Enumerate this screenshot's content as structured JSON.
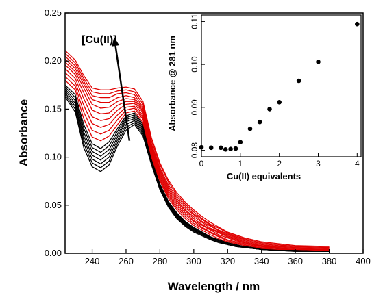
{
  "chart_data": [
    {
      "type": "line",
      "title": "",
      "xlabel": "Wavelength / nm",
      "ylabel": "Absorbance",
      "xlim": [
        224,
        400
      ],
      "ylim": [
        0,
        0.25
      ],
      "xticks": [
        240,
        260,
        280,
        300,
        320,
        340,
        360,
        380,
        400
      ],
      "yticks": [
        0.0,
        0.05,
        0.1,
        0.15,
        0.2,
        0.25
      ],
      "ytick_labels": [
        "0.00",
        "0.05",
        "0.10",
        "0.15",
        "0.20",
        "0.25"
      ],
      "annotation": {
        "text": "[Cu(II)]",
        "arrow_from": [
          262,
          0.117
        ],
        "arrow_to": [
          253,
          0.225
        ]
      },
      "colors": {
        "black_series": "#000000",
        "red_series": "#e00000"
      },
      "series": [
        {
          "color": "#000000",
          "values": [
            0.163,
            0.147,
            0.11,
            0.09,
            0.085,
            0.092,
            0.112,
            0.128,
            0.134,
            0.122,
            0.092,
            0.066,
            0.048,
            0.036,
            0.028,
            0.022,
            0.018,
            0.014,
            0.011,
            0.009,
            0.007,
            0.006,
            0.005,
            0.004,
            0.003,
            0.002,
            0.002
          ]
        },
        {
          "color": "#000000",
          "values": [
            0.165,
            0.15,
            0.114,
            0.094,
            0.089,
            0.096,
            0.115,
            0.131,
            0.136,
            0.124,
            0.093,
            0.067,
            0.049,
            0.037,
            0.029,
            0.023,
            0.019,
            0.015,
            0.012,
            0.009,
            0.007,
            0.006,
            0.005,
            0.004,
            0.003,
            0.002,
            0.002
          ]
        },
        {
          "color": "#000000",
          "values": [
            0.167,
            0.153,
            0.118,
            0.098,
            0.093,
            0.1,
            0.118,
            0.134,
            0.138,
            0.126,
            0.094,
            0.068,
            0.05,
            0.038,
            0.03,
            0.024,
            0.019,
            0.015,
            0.012,
            0.01,
            0.008,
            0.006,
            0.005,
            0.004,
            0.003,
            0.003,
            0.002
          ]
        },
        {
          "color": "#000000",
          "values": [
            0.169,
            0.156,
            0.122,
            0.102,
            0.097,
            0.104,
            0.121,
            0.137,
            0.14,
            0.128,
            0.095,
            0.069,
            0.051,
            0.039,
            0.031,
            0.025,
            0.02,
            0.016,
            0.013,
            0.01,
            0.008,
            0.006,
            0.005,
            0.004,
            0.003,
            0.003,
            0.002
          ]
        },
        {
          "color": "#000000",
          "values": [
            0.171,
            0.159,
            0.126,
            0.106,
            0.101,
            0.108,
            0.124,
            0.139,
            0.142,
            0.13,
            0.096,
            0.07,
            0.052,
            0.04,
            0.032,
            0.025,
            0.021,
            0.016,
            0.013,
            0.01,
            0.008,
            0.007,
            0.005,
            0.004,
            0.003,
            0.003,
            0.002
          ]
        },
        {
          "color": "#000000",
          "values": [
            0.173,
            0.162,
            0.13,
            0.11,
            0.105,
            0.112,
            0.127,
            0.141,
            0.144,
            0.132,
            0.097,
            0.071,
            0.053,
            0.041,
            0.032,
            0.026,
            0.021,
            0.017,
            0.013,
            0.011,
            0.008,
            0.007,
            0.006,
            0.004,
            0.004,
            0.003,
            0.002
          ]
        },
        {
          "color": "#000000",
          "values": [
            0.175,
            0.165,
            0.134,
            0.114,
            0.109,
            0.116,
            0.13,
            0.143,
            0.146,
            0.134,
            0.098,
            0.072,
            0.054,
            0.042,
            0.033,
            0.027,
            0.022,
            0.017,
            0.014,
            0.011,
            0.009,
            0.007,
            0.006,
            0.005,
            0.004,
            0.003,
            0.002
          ]
        },
        {
          "color": "#e00000",
          "values": [
            0.18,
            0.17,
            0.14,
            0.121,
            0.117,
            0.122,
            0.134,
            0.146,
            0.148,
            0.136,
            0.1,
            0.075,
            0.057,
            0.045,
            0.036,
            0.029,
            0.024,
            0.019,
            0.015,
            0.012,
            0.01,
            0.008,
            0.007,
            0.005,
            0.004,
            0.004,
            0.003
          ]
        },
        {
          "color": "#e00000",
          "values": [
            0.184,
            0.174,
            0.147,
            0.128,
            0.124,
            0.128,
            0.139,
            0.149,
            0.151,
            0.139,
            0.102,
            0.077,
            0.059,
            0.047,
            0.038,
            0.031,
            0.026,
            0.021,
            0.017,
            0.013,
            0.011,
            0.009,
            0.007,
            0.006,
            0.005,
            0.004,
            0.003
          ]
        },
        {
          "color": "#e00000",
          "values": [
            0.188,
            0.178,
            0.154,
            0.135,
            0.131,
            0.134,
            0.144,
            0.152,
            0.153,
            0.141,
            0.104,
            0.079,
            0.061,
            0.049,
            0.04,
            0.033,
            0.027,
            0.022,
            0.018,
            0.014,
            0.012,
            0.01,
            0.008,
            0.007,
            0.005,
            0.004,
            0.004
          ]
        },
        {
          "color": "#e00000",
          "values": [
            0.192,
            0.182,
            0.161,
            0.142,
            0.138,
            0.14,
            0.149,
            0.155,
            0.156,
            0.143,
            0.106,
            0.081,
            0.063,
            0.051,
            0.042,
            0.034,
            0.029,
            0.024,
            0.019,
            0.016,
            0.013,
            0.011,
            0.009,
            0.007,
            0.006,
            0.005,
            0.004
          ]
        },
        {
          "color": "#e00000",
          "values": [
            0.196,
            0.186,
            0.167,
            0.149,
            0.145,
            0.146,
            0.154,
            0.158,
            0.158,
            0.146,
            0.108,
            0.083,
            0.065,
            0.053,
            0.044,
            0.036,
            0.03,
            0.025,
            0.021,
            0.017,
            0.014,
            0.011,
            0.009,
            0.008,
            0.006,
            0.005,
            0.004
          ]
        },
        {
          "color": "#e00000",
          "values": [
            0.199,
            0.189,
            0.172,
            0.155,
            0.151,
            0.152,
            0.158,
            0.161,
            0.16,
            0.148,
            0.11,
            0.085,
            0.067,
            0.055,
            0.045,
            0.038,
            0.032,
            0.026,
            0.022,
            0.018,
            0.015,
            0.012,
            0.01,
            0.008,
            0.007,
            0.006,
            0.005
          ]
        },
        {
          "color": "#e00000",
          "values": [
            0.202,
            0.192,
            0.176,
            0.16,
            0.157,
            0.157,
            0.162,
            0.164,
            0.162,
            0.15,
            0.112,
            0.087,
            0.069,
            0.057,
            0.047,
            0.04,
            0.033,
            0.028,
            0.023,
            0.019,
            0.016,
            0.013,
            0.011,
            0.009,
            0.007,
            0.006,
            0.005
          ]
        },
        {
          "color": "#e00000",
          "values": [
            0.205,
            0.195,
            0.179,
            0.164,
            0.162,
            0.162,
            0.166,
            0.167,
            0.165,
            0.152,
            0.114,
            0.089,
            0.071,
            0.059,
            0.049,
            0.041,
            0.035,
            0.029,
            0.024,
            0.02,
            0.017,
            0.014,
            0.012,
            0.01,
            0.008,
            0.007,
            0.006
          ]
        },
        {
          "color": "#e00000",
          "values": [
            0.208,
            0.198,
            0.182,
            0.168,
            0.166,
            0.166,
            0.169,
            0.17,
            0.168,
            0.155,
            0.117,
            0.092,
            0.074,
            0.061,
            0.051,
            0.043,
            0.036,
            0.03,
            0.026,
            0.021,
            0.018,
            0.015,
            0.013,
            0.011,
            0.009,
            0.007,
            0.006
          ]
        },
        {
          "color": "#e00000",
          "values": [
            0.211,
            0.201,
            0.185,
            0.172,
            0.17,
            0.17,
            0.172,
            0.173,
            0.171,
            0.158,
            0.12,
            0.094,
            0.076,
            0.063,
            0.053,
            0.045,
            0.038,
            0.032,
            0.027,
            0.022,
            0.019,
            0.016,
            0.014,
            0.012,
            0.01,
            0.008,
            0.007
          ]
        }
      ],
      "x": [
        224,
        230,
        235,
        240,
        245,
        250,
        255,
        260,
        265,
        270,
        275,
        280,
        285,
        290,
        295,
        300,
        305,
        310,
        315,
        320,
        325,
        330,
        335,
        340,
        350,
        360,
        380
      ]
    },
    {
      "type": "scatter",
      "title": "",
      "xlabel": "Cu(II) equivalents",
      "ylabel": "Absorbance @ 281 nm",
      "xlim": [
        0,
        4.1
      ],
      "ylim": [
        0.0785,
        0.1115
      ],
      "xticks": [
        0,
        1,
        2,
        3,
        4
      ],
      "yticks": [
        0.08,
        0.09,
        0.1,
        0.11
      ],
      "ytick_labels": [
        "0.08",
        "0.09",
        "0.10",
        "0.11"
      ],
      "x": [
        0.0,
        0.25,
        0.5,
        0.62,
        0.75,
        0.88,
        1.0,
        1.25,
        1.5,
        1.75,
        2.0,
        2.5,
        3.0,
        4.0
      ],
      "y": [
        0.0807,
        0.0806,
        0.0806,
        0.0802,
        0.0803,
        0.0804,
        0.0819,
        0.085,
        0.0866,
        0.0896,
        0.0912,
        0.0962,
        0.1006,
        0.1094
      ]
    }
  ]
}
